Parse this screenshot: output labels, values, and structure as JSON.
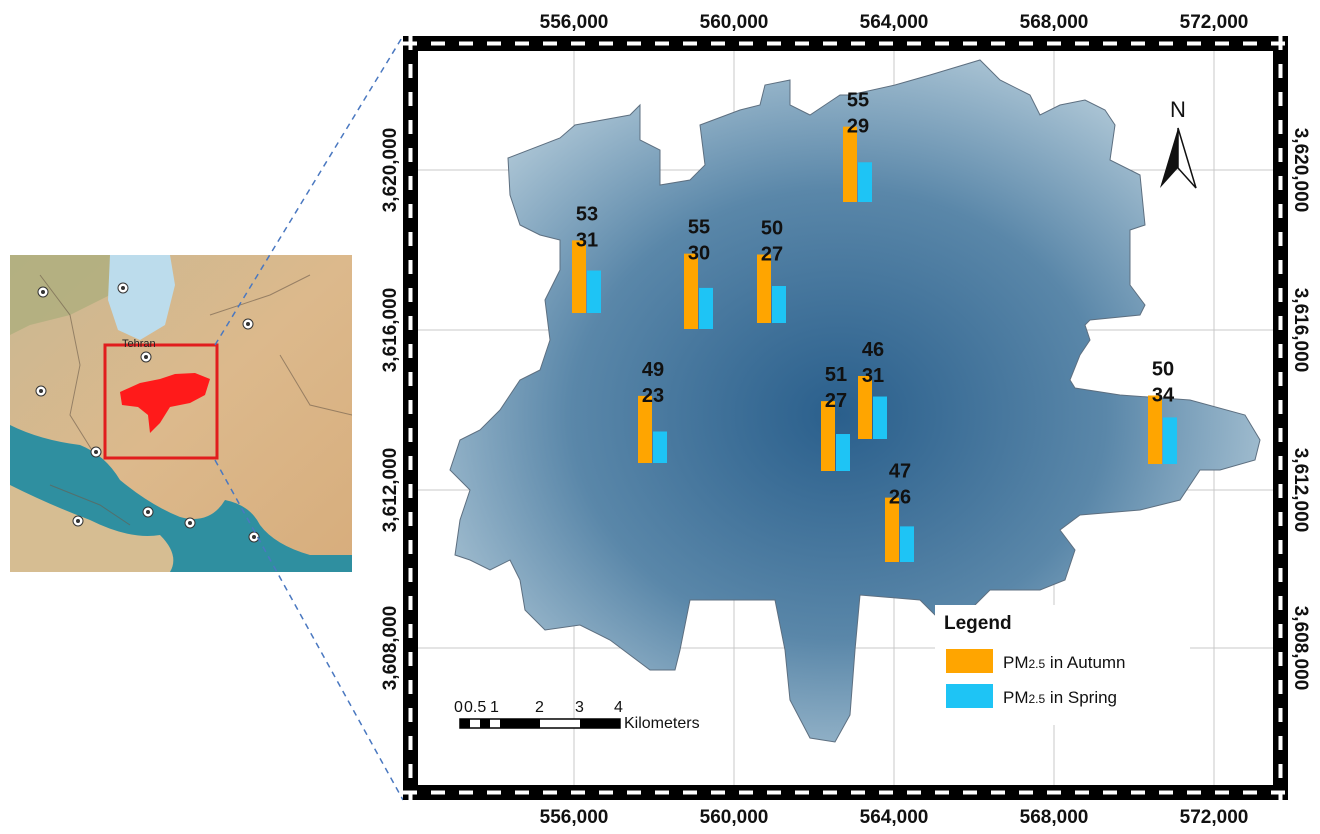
{
  "inset_map": {
    "city_label": "Tehran",
    "colors": {
      "highlight_box": "#e11d1d",
      "study_region": "#ff1a1a",
      "sea": "#b8d8e8",
      "gulf": "#2f8fa0",
      "land": "#d9b58a"
    }
  },
  "map_frame": {
    "x_ticks": [
      "556,000",
      "560,000",
      "564,000",
      "568,000",
      "572,000"
    ],
    "y_ticks_left": [
      "3,620,000",
      "3,616,000",
      "3,612,000",
      "3,608,000"
    ],
    "y_ticks_right": [
      "3,620,000",
      "3,616,000",
      "3,612,000",
      "3,608,000"
    ]
  },
  "north_arrow": {
    "label": "N"
  },
  "scale_bar": {
    "tick_labels": [
      "0",
      "0.5",
      "1",
      "2",
      "3",
      "4"
    ],
    "unit": "Kilometers"
  },
  "legend": {
    "title": "Legend",
    "items": [
      {
        "label": "PM",
        "sub": "2.5",
        "suffix": " in Autumn",
        "color": "#ffa500"
      },
      {
        "label": "PM",
        "sub": "2.5",
        "suffix": " in Spring",
        "color": "#1ec4f5"
      }
    ]
  },
  "chart_data": {
    "type": "bar",
    "series": [
      {
        "name": "PM2.5 in Autumn",
        "color": "#ffa500"
      },
      {
        "name": "PM2.5 in Spring",
        "color": "#1ec4f5"
      }
    ],
    "stations": [
      {
        "autumn": 53,
        "spring": 31
      },
      {
        "autumn": 55,
        "spring": 30
      },
      {
        "autumn": 50,
        "spring": 27
      },
      {
        "autumn": 55,
        "spring": 29
      },
      {
        "autumn": 49,
        "spring": 23
      },
      {
        "autumn": 51,
        "spring": 27
      },
      {
        "autumn": 46,
        "spring": 31
      },
      {
        "autumn": 47,
        "spring": 26
      },
      {
        "autumn": 50,
        "spring": 34
      }
    ]
  }
}
